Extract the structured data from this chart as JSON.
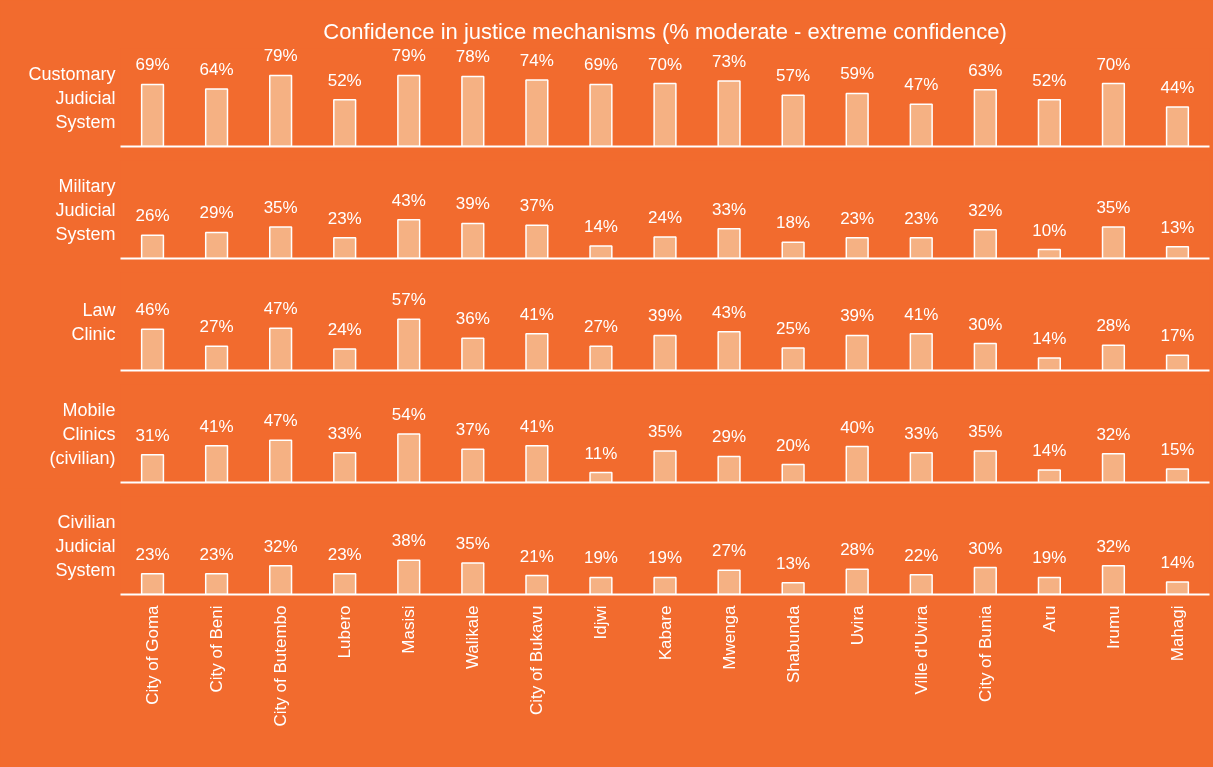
{
  "chart_data": [
    {
      "type": "bar",
      "title": "Confidence in justice mechanisms (% moderate - extreme confidence)",
      "ylabel": "Customary Judicial System",
      "categories": [
        null,
        null,
        null,
        null,
        null,
        null,
        null,
        null,
        null,
        null,
        null,
        null,
        null,
        null,
        null,
        null,
        null
      ],
      "values": [
        69,
        64,
        79,
        52,
        79,
        78,
        74,
        69,
        70,
        73,
        57,
        59,
        47,
        63,
        52,
        70,
        44
      ],
      "value_labels": [
        "69%",
        "64%",
        "79%",
        "52%",
        "79%",
        "78%",
        "74%",
        "69%",
        "70%",
        "73%",
        "57%",
        "59%",
        "47%",
        "63%",
        "52%",
        "70%",
        "44%"
      ],
      "color": "#f5b183",
      "tick_labels": false
    },
    {
      "type": "bar",
      "ylabel": "Military Judicial System",
      "categories": [
        null,
        null,
        null,
        null,
        null,
        null,
        null,
        null,
        null,
        null,
        null,
        null,
        null,
        null,
        null,
        null,
        null
      ],
      "values": [
        26,
        29,
        35,
        23,
        43,
        39,
        37,
        14,
        24,
        33,
        18,
        23,
        23,
        32,
        10,
        35,
        13
      ],
      "value_labels": [
        "26%",
        "29%",
        "35%",
        "23%",
        "43%",
        "39%",
        "37%",
        "14%",
        "24%",
        "33%",
        "18%",
        "23%",
        "23%",
        "32%",
        "10%",
        "35%",
        "13%"
      ],
      "color": "#f5b183",
      "tick_labels": false
    },
    {
      "type": "bar",
      "ylabel": "Law Clinic",
      "categories": [
        null,
        null,
        null,
        null,
        null,
        null,
        null,
        null,
        null,
        null,
        null,
        null,
        null,
        null,
        null,
        null,
        null
      ],
      "values": [
        46,
        27,
        47,
        24,
        57,
        36,
        41,
        27,
        39,
        43,
        25,
        39,
        41,
        30,
        14,
        28,
        17
      ],
      "value_labels": [
        "46%",
        "27%",
        "47%",
        "24%",
        "57%",
        "36%",
        "41%",
        "27%",
        "39%",
        "43%",
        "25%",
        "39%",
        "41%",
        "30%",
        "14%",
        "28%",
        "17%"
      ],
      "color": "#f5b183",
      "tick_labels": false
    },
    {
      "type": "bar",
      "ylabel": "Mobile Clinics (civilian)",
      "categories": [
        null,
        null,
        null,
        null,
        null,
        null,
        null,
        null,
        null,
        null,
        null,
        null,
        null,
        null,
        null,
        null,
        null
      ],
      "values": [
        31,
        41,
        47,
        33,
        54,
        37,
        41,
        11,
        35,
        29,
        20,
        40,
        33,
        35,
        14,
        32,
        15
      ],
      "value_labels": [
        "31%",
        "41%",
        "47%",
        "33%",
        "54%",
        "37%",
        "41%",
        "11%",
        "35%",
        "29%",
        "20%",
        "40%",
        "33%",
        "35%",
        "14%",
        "32%",
        "15%"
      ],
      "color": "#f5b183",
      "tick_labels": false
    },
    {
      "type": "bar",
      "ylabel": "Civilian Judicial System",
      "categories": [
        "City of Goma",
        "City of Beni",
        "City of Butembo",
        "Lubero",
        "Masisi",
        "Walikale",
        "City of Bukavu",
        "Idjwi",
        "Kabare",
        "Mwenga",
        "Shabunda",
        "Uvira",
        "Ville d'Uvira",
        "City of Bunia",
        "Aru",
        "Irumu",
        "Mahagi"
      ],
      "values": [
        23,
        23,
        32,
        23,
        38,
        35,
        21,
        19,
        19,
        27,
        13,
        28,
        22,
        30,
        19,
        32,
        14
      ],
      "value_labels": [
        "23%",
        "23%",
        "32%",
        "23%",
        "38%",
        "35%",
        "21%",
        "19%",
        "19%",
        "27%",
        "13%",
        "28%",
        "22%",
        "30%",
        "19%",
        "32%",
        "14%"
      ],
      "color": "#f5b183",
      "tick_labels": "x"
    }
  ]
}
